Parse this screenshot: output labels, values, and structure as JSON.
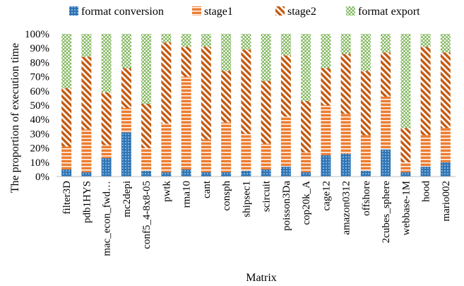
{
  "chart_data": {
    "type": "bar",
    "stacked": true,
    "title": "",
    "xlabel": "Matrix",
    "ylabel": "The proportion of execution time",
    "ylim": [
      0,
      100
    ],
    "y_ticks": [
      "0%",
      "10%",
      "20%",
      "30%",
      "40%",
      "50%",
      "60%",
      "70%",
      "80%",
      "90%",
      "100%"
    ],
    "grid": false,
    "legend_position": "top",
    "categories": [
      "filter3D",
      "pdb1HYS",
      "mac_econ_fwd…",
      "mc2depi",
      "conf5_4-8x8-05",
      "pwtk",
      "rma10",
      "cant",
      "consph",
      "shipsec1",
      "scircuit",
      "poisson3Da",
      "cop20k_A",
      "cage12",
      "amazon0312",
      "offshore",
      "2cubes_sphere",
      "webbase-1M",
      "hood",
      "mario002"
    ],
    "series": [
      {
        "name": "format conversion",
        "color": "#2e75b6",
        "pattern": "dots",
        "values": [
          5,
          3,
          13,
          31,
          4,
          3,
          5,
          3,
          3,
          4,
          5,
          7,
          3,
          15,
          16,
          4,
          19,
          3,
          7,
          10
        ]
      },
      {
        "name": "stage1",
        "color": "#ed7d31",
        "pattern": "horizontal-stripes",
        "values": [
          16,
          30,
          9,
          17,
          16,
          34,
          65,
          23,
          35,
          26,
          18,
          35,
          14,
          35,
          28,
          25,
          37,
          7,
          22,
          24
        ]
      },
      {
        "name": "stage2",
        "color": "#c55a11",
        "pattern": "diagonal-stripes",
        "values": [
          41,
          51,
          37,
          28,
          31,
          57,
          21,
          65,
          36,
          59,
          44,
          43,
          36,
          26,
          42,
          45,
          31,
          24,
          62,
          53
        ]
      },
      {
        "name": "format export",
        "color": "#70ad47",
        "pattern": "crosshatch",
        "values": [
          38,
          16,
          41,
          24,
          49,
          6,
          9,
          9,
          26,
          11,
          33,
          15,
          47,
          24,
          14,
          26,
          13,
          66,
          9,
          13
        ]
      }
    ]
  }
}
